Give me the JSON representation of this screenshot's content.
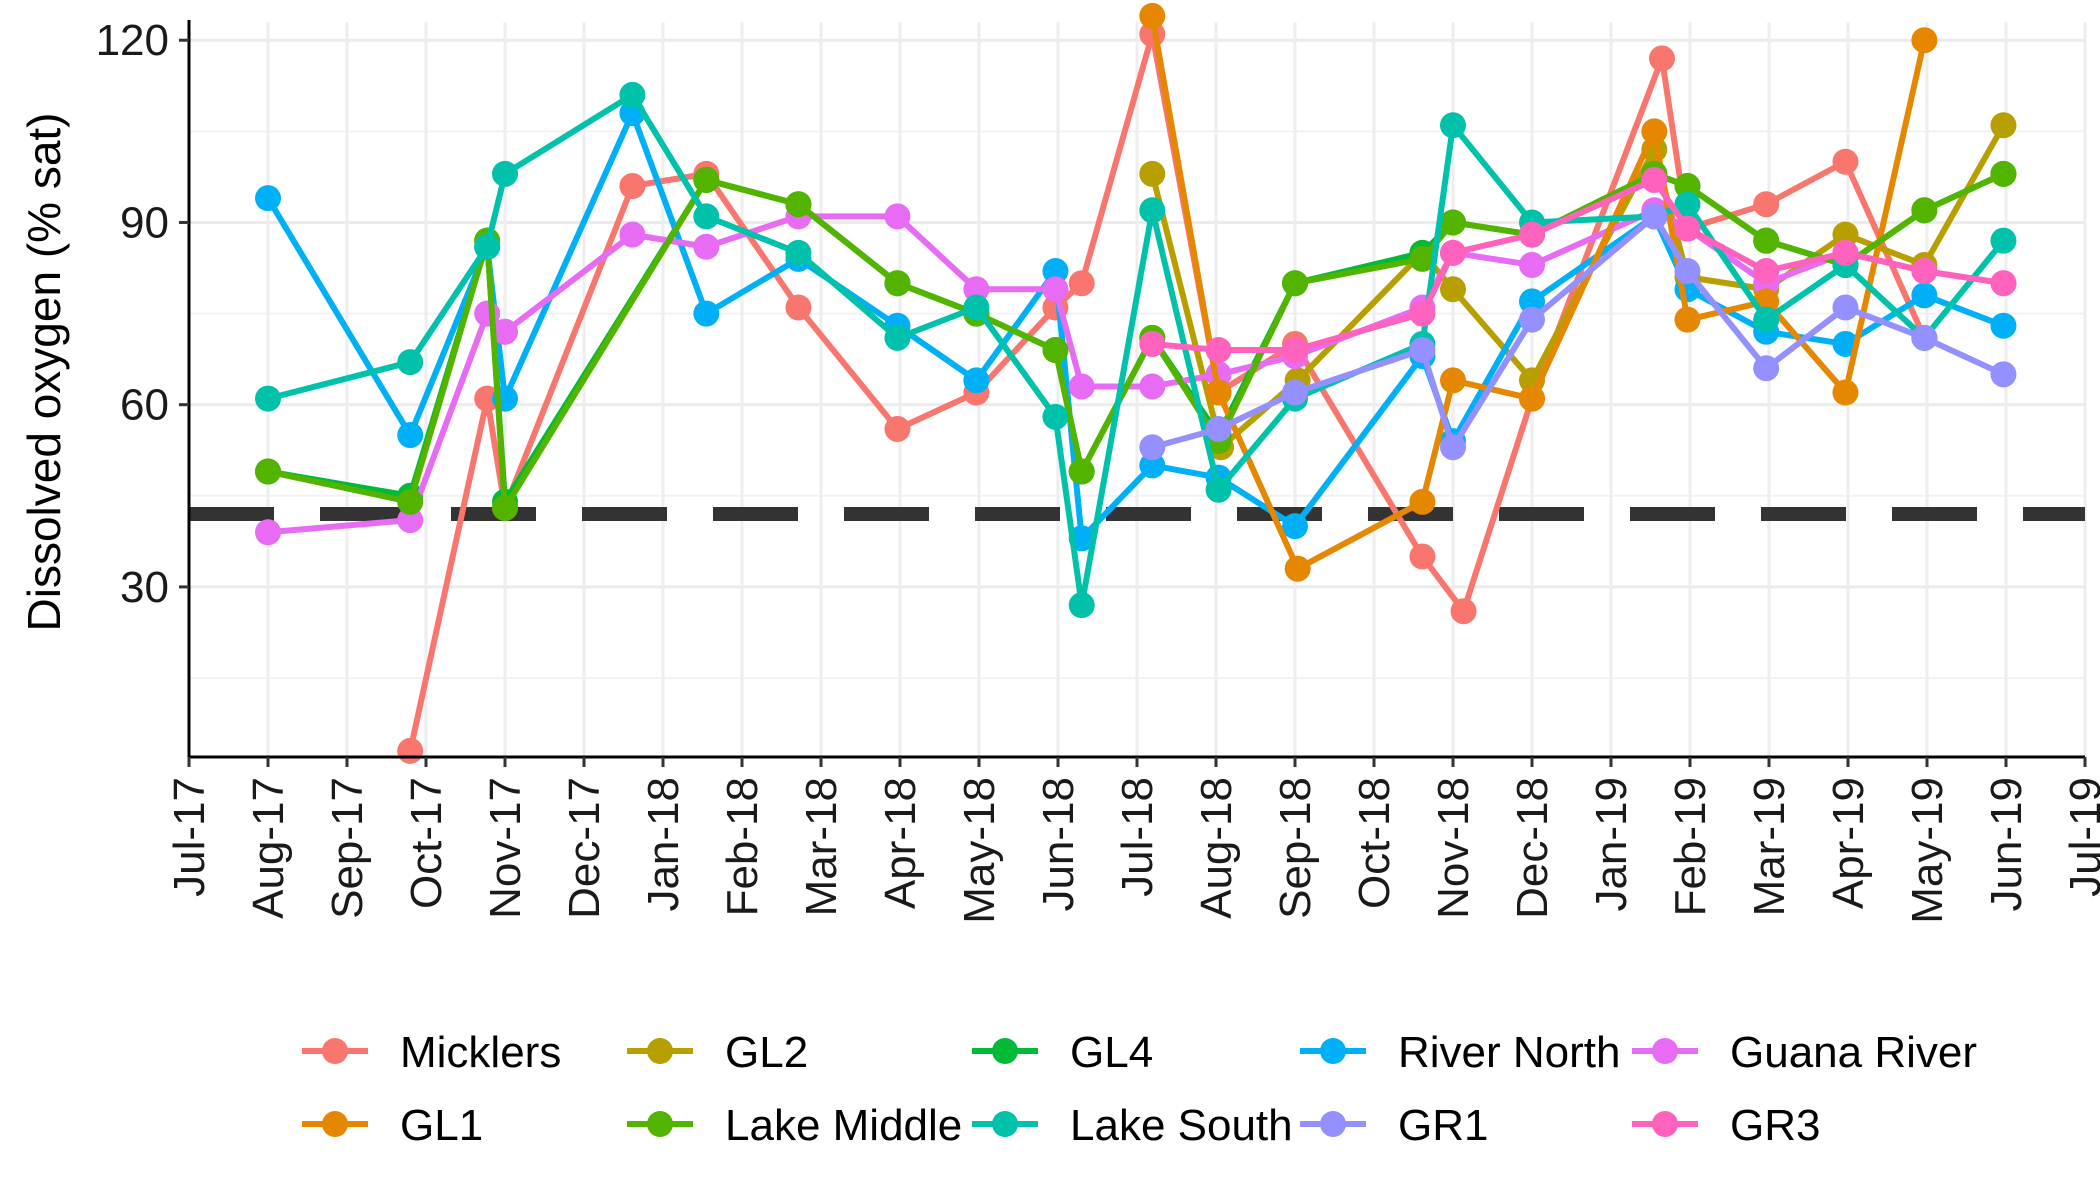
{
  "chart_data": {
    "type": "line",
    "title": "",
    "xlabel": "",
    "ylabel": "Dissolved oxygen (% sat)",
    "ylim": [
      2,
      123
    ],
    "yticks": [
      30,
      60,
      90,
      120
    ],
    "x_tick_labels": [
      "Jul-17",
      "Aug-17",
      "Sep-17",
      "Oct-17",
      "Nov-17",
      "Dec-17",
      "Jan-18",
      "Feb-18",
      "Mar-18",
      "Apr-18",
      "May-18",
      "Jun-18",
      "Jul-18",
      "Aug-18",
      "Sep-18",
      "Oct-18",
      "Nov-18",
      "Dec-18",
      "Jan-19",
      "Feb-19",
      "Mar-19",
      "Apr-19",
      "May-19",
      "Jun-19",
      "Jul-19"
    ],
    "x_axis_dates": "months from 2017-07-01 (0) to 2019-07-01 (24)",
    "reference_line": {
      "y": 42,
      "style": "dashed",
      "color": "#333333"
    },
    "grid": true,
    "legend_position": "bottom",
    "series": [
      {
        "name": "Micklers",
        "color": "#F8766D",
        "points": [
          [
            "2017-09-25",
            3
          ],
          [
            "2017-10-25",
            61
          ],
          [
            "2017-11-01",
            43
          ],
          [
            "2017-12-20",
            96
          ],
          [
            "2018-01-18",
            98
          ],
          [
            "2018-02-21",
            76
          ],
          [
            "2018-03-31",
            56
          ],
          [
            "2018-04-30",
            62
          ],
          [
            "2018-05-31",
            76
          ],
          [
            "2018-06-10",
            80
          ],
          [
            "2018-07-07",
            121
          ],
          [
            "2018-08-02",
            62
          ],
          [
            "2018-09-01",
            70
          ],
          [
            "2018-10-20",
            35
          ],
          [
            "2018-11-05",
            26
          ],
          [
            "2018-12-01",
            61
          ],
          [
            "2019-01-21",
            117
          ],
          [
            "2019-01-31",
            89
          ],
          [
            "2019-02-28",
            93
          ],
          [
            "2019-03-31",
            100
          ],
          [
            "2019-04-30",
            71
          ]
        ]
      },
      {
        "name": "GL2",
        "color": "#B79F00",
        "points": [
          [
            "2018-07-07",
            98
          ],
          [
            "2018-08-03",
            53
          ],
          [
            "2018-09-02",
            64
          ],
          [
            "2018-10-20",
            85
          ],
          [
            "2018-11-01",
            79
          ],
          [
            "2018-12-01",
            64
          ],
          [
            "2019-01-18",
            102
          ],
          [
            "2019-01-31",
            81
          ],
          [
            "2019-02-28",
            79
          ],
          [
            "2019-03-31",
            88
          ],
          [
            "2019-04-30",
            83
          ],
          [
            "2019-05-31",
            106
          ]
        ]
      },
      {
        "name": "GL4",
        "color": "#00BA38",
        "points": [
          [
            "2017-08-01",
            49
          ],
          [
            "2017-09-25",
            45
          ],
          [
            "2017-10-25",
            87
          ],
          [
            "2017-11-01",
            44
          ],
          [
            "2018-01-18",
            97
          ],
          [
            "2018-02-21",
            93
          ],
          [
            "2018-03-31",
            80
          ],
          [
            "2018-04-30",
            75
          ],
          [
            "2018-05-31",
            69
          ],
          [
            "2018-06-10",
            49
          ],
          [
            "2018-07-07",
            71
          ],
          [
            "2018-08-02",
            55
          ],
          [
            "2018-09-01",
            80
          ],
          [
            "2018-10-20",
            85
          ],
          [
            "2018-11-01",
            90
          ],
          [
            "2018-12-01",
            88
          ],
          [
            "2019-01-18",
            98
          ],
          [
            "2019-01-31",
            96
          ],
          [
            "2019-02-28",
            87
          ],
          [
            "2019-03-31",
            83
          ],
          [
            "2019-04-30",
            92
          ],
          [
            "2019-05-31",
            98
          ]
        ]
      },
      {
        "name": "River North",
        "color": "#00B0F6",
        "points": [
          [
            "2017-08-01",
            94
          ],
          [
            "2017-09-25",
            55
          ],
          [
            "2017-10-25",
            86
          ],
          [
            "2017-11-01",
            61
          ],
          [
            "2017-12-20",
            108
          ],
          [
            "2018-01-18",
            75
          ],
          [
            "2018-02-21",
            84
          ],
          [
            "2018-03-31",
            73
          ],
          [
            "2018-04-30",
            64
          ],
          [
            "2018-05-31",
            82
          ],
          [
            "2018-06-10",
            38
          ],
          [
            "2018-07-07",
            50
          ],
          [
            "2018-08-02",
            48
          ],
          [
            "2018-09-01",
            40
          ],
          [
            "2018-10-20",
            68
          ],
          [
            "2018-11-01",
            54
          ],
          [
            "2018-12-01",
            77
          ],
          [
            "2019-01-18",
            91
          ],
          [
            "2019-01-31",
            79
          ],
          [
            "2019-02-28",
            72
          ],
          [
            "2019-03-31",
            70
          ],
          [
            "2019-04-30",
            78
          ],
          [
            "2019-05-31",
            73
          ]
        ]
      },
      {
        "name": "Guana River",
        "color": "#E76BF3",
        "points": [
          [
            "2017-08-01",
            39
          ],
          [
            "2017-09-25",
            41
          ],
          [
            "2017-10-25",
            75
          ],
          [
            "2017-11-01",
            72
          ],
          [
            "2017-12-20",
            88
          ],
          [
            "2018-01-18",
            86
          ],
          [
            "2018-02-21",
            91
          ],
          [
            "2018-03-31",
            91
          ],
          [
            "2018-04-30",
            79
          ],
          [
            "2018-05-31",
            79
          ],
          [
            "2018-06-10",
            63
          ],
          [
            "2018-07-07",
            63
          ],
          [
            "2018-08-02",
            65
          ],
          [
            "2018-09-01",
            68
          ],
          [
            "2018-10-20",
            76
          ],
          [
            "2018-11-01",
            85
          ],
          [
            "2018-12-01",
            83
          ],
          [
            "2019-01-18",
            92
          ],
          [
            "2019-01-31",
            89
          ],
          [
            "2019-02-28",
            80
          ],
          [
            "2019-03-31",
            85
          ],
          [
            "2019-04-30",
            82
          ],
          [
            "2019-05-31",
            80
          ]
        ]
      },
      {
        "name": "GL1",
        "color": "#E58700",
        "points": [
          [
            "2018-07-07",
            124
          ],
          [
            "2018-08-02",
            62
          ],
          [
            "2018-09-02",
            33
          ],
          [
            "2018-10-20",
            44
          ],
          [
            "2018-11-01",
            64
          ],
          [
            "2018-12-01",
            61
          ],
          [
            "2019-01-18",
            105
          ],
          [
            "2019-01-31",
            74
          ],
          [
            "2019-02-28",
            77
          ],
          [
            "2019-03-31",
            62
          ],
          [
            "2019-04-30",
            120
          ]
        ]
      },
      {
        "name": "Lake Middle",
        "color": "#53B400",
        "points": [
          [
            "2017-08-01",
            49
          ],
          [
            "2017-09-25",
            44
          ],
          [
            "2017-10-25",
            87
          ],
          [
            "2017-11-01",
            43
          ],
          [
            "2018-01-18",
            97
          ],
          [
            "2018-02-21",
            93
          ],
          [
            "2018-03-31",
            80
          ],
          [
            "2018-04-30",
            75
          ],
          [
            "2018-05-31",
            69
          ],
          [
            "2018-06-10",
            49
          ],
          [
            "2018-07-07",
            71
          ],
          [
            "2018-08-02",
            54
          ],
          [
            "2018-09-01",
            80
          ],
          [
            "2018-10-20",
            84
          ],
          [
            "2018-11-01",
            90
          ],
          [
            "2018-12-01",
            88
          ],
          [
            "2019-01-18",
            98
          ],
          [
            "2019-01-31",
            96
          ],
          [
            "2019-02-28",
            87
          ],
          [
            "2019-03-31",
            83
          ],
          [
            "2019-04-30",
            92
          ],
          [
            "2019-05-31",
            98
          ]
        ]
      },
      {
        "name": "Lake South",
        "color": "#00C1A9",
        "points": [
          [
            "2017-08-01",
            61
          ],
          [
            "2017-09-25",
            67
          ],
          [
            "2017-10-25",
            86
          ],
          [
            "2017-11-01",
            98
          ],
          [
            "2017-12-20",
            111
          ],
          [
            "2018-01-18",
            91
          ],
          [
            "2018-02-21",
            85
          ],
          [
            "2018-03-31",
            71
          ],
          [
            "2018-04-30",
            76
          ],
          [
            "2018-05-31",
            58
          ],
          [
            "2018-06-10",
            27
          ],
          [
            "2018-07-07",
            92
          ],
          [
            "2018-08-02",
            46
          ],
          [
            "2018-09-01",
            61
          ],
          [
            "2018-10-20",
            70
          ],
          [
            "2018-11-01",
            106
          ],
          [
            "2018-12-01",
            90
          ],
          [
            "2019-01-18",
            91
          ],
          [
            "2019-01-31",
            93
          ],
          [
            "2019-02-28",
            74
          ],
          [
            "2019-03-31",
            83
          ],
          [
            "2019-04-30",
            71
          ],
          [
            "2019-05-31",
            87
          ]
        ]
      },
      {
        "name": "GR1",
        "color": "#9590FF",
        "points": [
          [
            "2018-07-07",
            53
          ],
          [
            "2018-08-02",
            56
          ],
          [
            "2018-09-01",
            62
          ],
          [
            "2018-10-20",
            69
          ],
          [
            "2018-11-01",
            53
          ],
          [
            "2018-12-01",
            74
          ],
          [
            "2019-01-18",
            91
          ],
          [
            "2019-01-31",
            82
          ],
          [
            "2019-02-28",
            66
          ],
          [
            "2019-03-31",
            76
          ],
          [
            "2019-04-30",
            71
          ],
          [
            "2019-05-31",
            65
          ]
        ]
      },
      {
        "name": "GR3",
        "color": "#FF62BC",
        "points": [
          [
            "2018-07-07",
            70
          ],
          [
            "2018-08-02",
            69
          ],
          [
            "2018-09-01",
            69
          ],
          [
            "2018-10-20",
            75
          ],
          [
            "2018-11-01",
            85
          ],
          [
            "2018-12-01",
            88
          ],
          [
            "2019-01-18",
            97
          ],
          [
            "2019-01-31",
            89
          ],
          [
            "2019-02-28",
            82
          ],
          [
            "2019-03-31",
            85
          ],
          [
            "2019-04-30",
            82
          ],
          [
            "2019-05-31",
            80
          ]
        ]
      }
    ],
    "legend_rows": [
      [
        "Micklers",
        "GL2",
        "GL4",
        "River North",
        "Guana River"
      ],
      [
        "GL1",
        "Lake Middle",
        "Lake South",
        "GR1",
        "GR3"
      ]
    ]
  }
}
